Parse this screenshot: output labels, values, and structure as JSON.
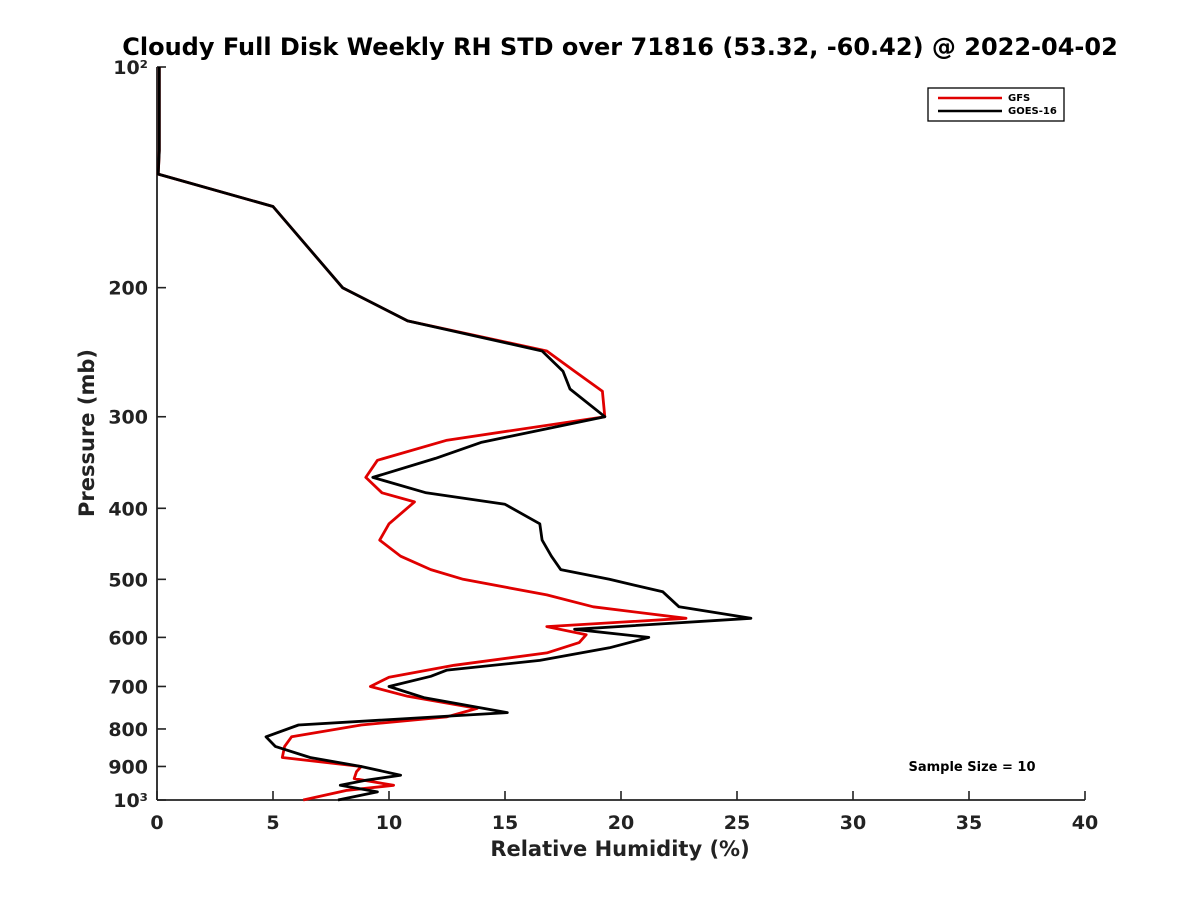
{
  "chart_data": {
    "type": "line",
    "title": "Cloudy Full Disk Weekly RH STD over 71816 (53.32, -60.42) @ 2022-04-02",
    "xlabel": "Relative Humidity (%)",
    "ylabel": "Pressure (mb)",
    "xlim": [
      0,
      40
    ],
    "ylim": [
      100,
      1000
    ],
    "y_scale": "log",
    "y_reversed": true,
    "x_ticks": [
      0,
      5,
      10,
      15,
      20,
      25,
      30,
      35,
      40
    ],
    "x_tick_labels": [
      "0",
      "5",
      "10",
      "15",
      "20",
      "25",
      "30",
      "35",
      "40"
    ],
    "y_ticks": [
      100,
      200,
      300,
      400,
      500,
      600,
      700,
      800,
      900,
      1000
    ],
    "y_tick_labels": [
      "10²",
      "200",
      "300",
      "400",
      "500",
      "600",
      "700",
      "800",
      "900",
      "10³"
    ],
    "grid": false,
    "legend_position": "top-right",
    "annotation": "Sample Size = 10",
    "series": [
      {
        "name": "GFS",
        "color": "#e00000",
        "points": [
          [
            0.1,
            100
          ],
          [
            0.1,
            130
          ],
          [
            0.05,
            140
          ],
          [
            5.0,
            155
          ],
          [
            8.0,
            200
          ],
          [
            10.8,
            222
          ],
          [
            16.8,
            244
          ],
          [
            18.0,
            260
          ],
          [
            19.2,
            277
          ],
          [
            19.3,
            300
          ],
          [
            12.5,
            323
          ],
          [
            9.5,
            344
          ],
          [
            9.0,
            363
          ],
          [
            9.7,
            381
          ],
          [
            11.1,
            392
          ],
          [
            10.0,
            420
          ],
          [
            9.6,
            442
          ],
          [
            10.5,
            465
          ],
          [
            11.8,
            485
          ],
          [
            13.2,
            500
          ],
          [
            16.8,
            525
          ],
          [
            18.8,
            545
          ],
          [
            22.8,
            565
          ],
          [
            16.8,
            580
          ],
          [
            18.5,
            595
          ],
          [
            18.2,
            610
          ],
          [
            16.8,
            630
          ],
          [
            12.8,
            655
          ],
          [
            10.0,
            680
          ],
          [
            9.2,
            700
          ],
          [
            10.8,
            722
          ],
          [
            13.8,
            750
          ],
          [
            12.5,
            770
          ],
          [
            8.8,
            790
          ],
          [
            5.8,
            820
          ],
          [
            5.5,
            845
          ],
          [
            5.4,
            875
          ],
          [
            8.8,
            900
          ],
          [
            8.6,
            915
          ],
          [
            8.5,
            935
          ],
          [
            10.2,
            955
          ],
          [
            8.2,
            970
          ],
          [
            6.3,
            1000
          ]
        ]
      },
      {
        "name": "GOES-16",
        "color": "#000000",
        "points": [
          [
            0.1,
            100
          ],
          [
            0.1,
            130
          ],
          [
            0.05,
            140
          ],
          [
            5.0,
            155
          ],
          [
            8.0,
            200
          ],
          [
            10.8,
            222
          ],
          [
            16.6,
            244
          ],
          [
            17.5,
            260
          ],
          [
            17.8,
            275
          ],
          [
            19.3,
            300
          ],
          [
            14.0,
            325
          ],
          [
            12.0,
            342
          ],
          [
            9.3,
            363
          ],
          [
            11.6,
            381
          ],
          [
            15.0,
            395
          ],
          [
            16.5,
            420
          ],
          [
            16.6,
            442
          ],
          [
            17.0,
            465
          ],
          [
            17.4,
            485
          ],
          [
            19.5,
            500
          ],
          [
            21.8,
            520
          ],
          [
            22.5,
            545
          ],
          [
            25.6,
            565
          ],
          [
            18.0,
            585
          ],
          [
            21.2,
            600
          ],
          [
            19.5,
            620
          ],
          [
            16.5,
            645
          ],
          [
            12.5,
            665
          ],
          [
            11.8,
            678
          ],
          [
            10.0,
            700
          ],
          [
            11.5,
            725
          ],
          [
            15.1,
            760
          ],
          [
            6.1,
            790
          ],
          [
            4.7,
            820
          ],
          [
            5.1,
            845
          ],
          [
            6.6,
            875
          ],
          [
            8.8,
            900
          ],
          [
            10.5,
            925
          ],
          [
            9.0,
            940
          ],
          [
            7.9,
            955
          ],
          [
            9.5,
            975
          ],
          [
            7.8,
            1000
          ]
        ]
      }
    ]
  }
}
